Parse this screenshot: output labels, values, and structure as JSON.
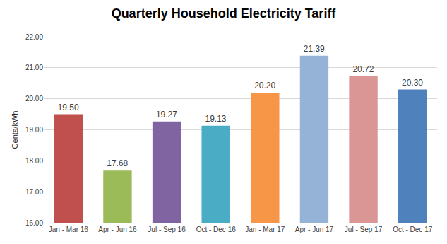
{
  "chart_data": {
    "type": "bar",
    "title": "Quarterly Household Electricity Tariff",
    "y_label": "Cents/kWh",
    "categories": [
      "Jan - Mar 16",
      "Apr - Jun 16",
      "Jul - Sep 16",
      "Oct - Dec 16",
      "Jan - Mar 17",
      "Apr - Jun 17",
      "Jul - Sep 17",
      "Oct - Dec 17"
    ],
    "values": [
      19.5,
      17.68,
      19.27,
      19.13,
      20.2,
      21.39,
      20.72,
      20.3
    ],
    "value_labels": [
      "19.50",
      "17.68",
      "19.27",
      "19.13",
      "20.20",
      "21.39",
      "20.72",
      "20.30"
    ],
    "colors": [
      "#c0504d",
      "#9bbb59",
      "#8064a2",
      "#4bacc6",
      "#f79646",
      "#95b3d7",
      "#d99694",
      "#4f81bd"
    ],
    "ylim": [
      16,
      22
    ],
    "yticks": [
      {
        "value": 16,
        "label": "16.00"
      },
      {
        "value": 17,
        "label": "17.00"
      },
      {
        "value": 18,
        "label": "18.00"
      },
      {
        "value": 19,
        "label": "19.00"
      },
      {
        "value": 20,
        "label": "20.00"
      },
      {
        "value": 21,
        "label": "21.00"
      },
      {
        "value": 22,
        "label": "22.00"
      }
    ],
    "grid": true,
    "data_labels": true
  }
}
